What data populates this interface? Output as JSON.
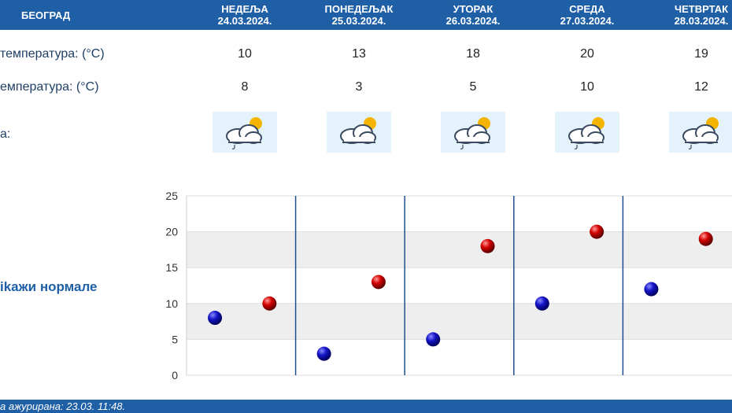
{
  "header": {
    "city": "БЕОГРАД",
    "days": [
      {
        "name": "НЕДЕЉА",
        "date": "24.03.2024."
      },
      {
        "name": "ПОНЕДЕЉАК",
        "date": "25.03.2024."
      },
      {
        "name": "УТОРАК",
        "date": "26.03.2024."
      },
      {
        "name": "СРЕДА",
        "date": "27.03.2024."
      },
      {
        "name": "ЧЕТВРТАК",
        "date": "28.03.2024."
      }
    ]
  },
  "rows": {
    "max_label": "температура: (°C)",
    "min_label": "емпература: (°C)",
    "weather_label": "а:"
  },
  "forecast": {
    "max": [
      "10",
      "13",
      "18",
      "20",
      "19"
    ],
    "min": [
      "8",
      "3",
      "5",
      "10",
      "12"
    ],
    "icons": [
      "partly-cloudy-rain-icon",
      "partly-cloudy-icon",
      "partly-cloudy-rain-icon",
      "partly-cloudy-rain-icon",
      "partly-cloudy-rain-icon"
    ]
  },
  "toggle_label": "ikaжи нормале",
  "footer": {
    "updated": "а ажурирана:  23.03. 11:48."
  },
  "colors": {
    "header_bg": "#1f5fa6",
    "min_dot": "#1010b0",
    "max_dot": "#cc0000",
    "band": "#eeeeee"
  },
  "chart_data": {
    "type": "scatter",
    "title": "",
    "xlabel": "",
    "ylabel": "",
    "ylim": [
      0,
      25
    ],
    "yticks": [
      "0",
      "5",
      "10",
      "15",
      "20",
      "25"
    ],
    "categories": [
      "НЕДЕЉА",
      "ПОНЕДЕЉАК",
      "УТОРАК",
      "СРЕДА",
      "ЧЕТВРТАК"
    ],
    "series": [
      {
        "values": [
          8,
          3,
          5,
          10,
          12
        ]
      },
      {
        "values": [
          10,
          13,
          18,
          20,
          19
        ]
      }
    ],
    "grid": "alternating-bands"
  }
}
